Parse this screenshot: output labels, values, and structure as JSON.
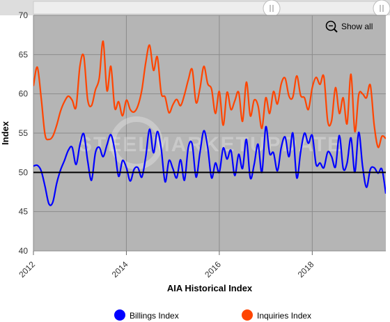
{
  "chart_data": {
    "type": "line",
    "title": "",
    "xlabel": "AIA Historical Index",
    "ylabel": "Index",
    "ylim": [
      40,
      70
    ],
    "xlim": [
      "2012-01",
      "2019-08"
    ],
    "yticks": [
      "40",
      "45",
      "50",
      "55",
      "60",
      "65",
      "70"
    ],
    "xticks": [
      "2012",
      "2014",
      "2016",
      "2018"
    ],
    "grid": true,
    "legend_position": "bottom",
    "reference_line": 50,
    "watermark": "STEELMARKETUPDATE",
    "zoom_button": "Show all",
    "colors": {
      "plot_background": "#b5b5b5",
      "billings": "#0000ff",
      "inquiries": "#ff4500",
      "reference_line": "#000000"
    },
    "x": [
      "2012-01",
      "2012-02",
      "2012-03",
      "2012-04",
      "2012-05",
      "2012-06",
      "2012-07",
      "2012-08",
      "2012-09",
      "2012-10",
      "2012-11",
      "2012-12",
      "2013-01",
      "2013-02",
      "2013-03",
      "2013-04",
      "2013-05",
      "2013-06",
      "2013-07",
      "2013-08",
      "2013-09",
      "2013-10",
      "2013-11",
      "2013-12",
      "2014-01",
      "2014-02",
      "2014-03",
      "2014-04",
      "2014-05",
      "2014-06",
      "2014-07",
      "2014-08",
      "2014-09",
      "2014-10",
      "2014-11",
      "2014-12",
      "2015-01",
      "2015-02",
      "2015-03",
      "2015-04",
      "2015-05",
      "2015-06",
      "2015-07",
      "2015-08",
      "2015-09",
      "2015-10",
      "2015-11",
      "2015-12",
      "2016-01",
      "2016-02",
      "2016-03",
      "2016-04",
      "2016-05",
      "2016-06",
      "2016-07",
      "2016-08",
      "2016-09",
      "2016-10",
      "2016-11",
      "2016-12",
      "2017-01",
      "2017-02",
      "2017-03",
      "2017-04",
      "2017-05",
      "2017-06",
      "2017-07",
      "2017-08",
      "2017-09",
      "2017-10",
      "2017-11",
      "2017-12",
      "2018-01",
      "2018-02",
      "2018-03",
      "2018-04",
      "2018-05",
      "2018-06",
      "2018-07",
      "2018-08",
      "2018-09",
      "2018-10",
      "2018-11",
      "2018-12",
      "2019-01",
      "2019-02",
      "2019-03",
      "2019-04",
      "2019-05",
      "2019-06",
      "2019-07",
      "2019-08"
    ],
    "series": [
      {
        "name": "Billings Index",
        "values": [
          50.8,
          50.9,
          50.2,
          48.2,
          46.0,
          46.2,
          48.6,
          50.3,
          51.5,
          52.8,
          53.2,
          51.0,
          53.5,
          54.9,
          51.5,
          49.0,
          52.5,
          53.2,
          52.0,
          53.5,
          54.8,
          52.8,
          49.5,
          51.5,
          50.6,
          48.9,
          50.4,
          50.6,
          49.4,
          52.0,
          55.5,
          52.5,
          55.2,
          53.0,
          48.8,
          51.5,
          50.5,
          49.3,
          51.6,
          49.0,
          53.2,
          53.6,
          49.4,
          52.5,
          55.3,
          53.2,
          49.3,
          51.2,
          50.0,
          53.1,
          51.7,
          52.8,
          49.6,
          52.3,
          50.5,
          54.2,
          49.3,
          51.0,
          53.6,
          50.0,
          55.8,
          52.4,
          52.5,
          50.2,
          53.2,
          54.5,
          52.0,
          55.0,
          49.3,
          52.6,
          55.0,
          53.7,
          54.7,
          51.0,
          51.2,
          50.6,
          52.6,
          52.0,
          50.7,
          54.7,
          50.5,
          51.2,
          54.4,
          50.0,
          55.1,
          50.8,
          48.1,
          50.4,
          50.6,
          49.9,
          50.4,
          47.3
        ]
      },
      {
        "name": "Inquiries Index",
        "values": [
          61.0,
          63.4,
          59.5,
          54.8,
          54.2,
          54.6,
          56.0,
          57.8,
          59.0,
          59.7,
          59.2,
          58.3,
          63.5,
          64.8,
          59.3,
          58.5,
          60.5,
          62.0,
          66.7,
          60.4,
          63.5,
          58.2,
          59.0,
          57.2,
          59.2,
          58.0,
          57.7,
          58.5,
          60.5,
          64.0,
          66.2,
          63.0,
          64.7,
          60.1,
          59.6,
          57.6,
          58.6,
          59.3,
          58.5,
          59.9,
          61.8,
          63.1,
          58.9,
          60.7,
          63.5,
          61.3,
          60.6,
          57.5,
          60.3,
          56.0,
          60.2,
          58.0,
          59.1,
          60.2,
          56.5,
          61.5,
          57.2,
          59.2,
          58.5,
          55.6,
          59.5,
          57.5,
          60.3,
          58.7,
          61.3,
          62.0,
          59.7,
          59.6,
          62.3,
          59.8,
          59.5,
          58.0,
          60.8,
          62.1,
          61.2,
          62.2,
          56.5,
          56.6,
          60.8,
          57.5,
          59.5,
          56.2,
          62.5,
          55.2,
          59.9,
          60.0,
          59.5,
          61.1,
          56.0,
          53.2,
          54.6,
          54.3
        ]
      }
    ]
  },
  "legend": {
    "items": [
      {
        "label": "Billings Index",
        "color": "#0000ff"
      },
      {
        "label": "Inquiries Index",
        "color": "#ff4500"
      }
    ]
  }
}
